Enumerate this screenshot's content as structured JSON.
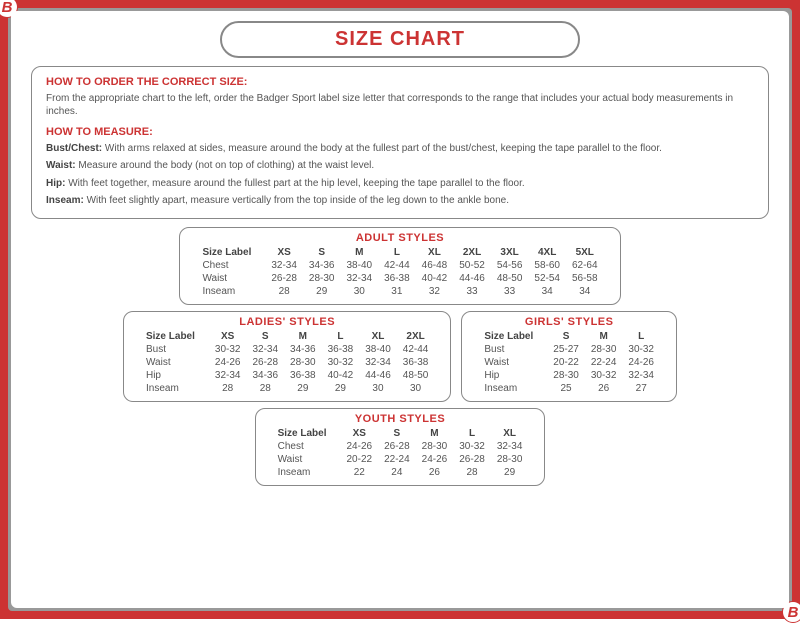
{
  "colors": {
    "accent_red": "#c33",
    "frame_gray": "#999",
    "border_gray": "#888",
    "text_gray": "#555",
    "heading_dark": "#444"
  },
  "page_title": "SIZE CHART",
  "logo_letter": "B",
  "info": {
    "order_heading": "HOW TO ORDER THE CORRECT SIZE:",
    "order_text": "From the appropriate chart to the left, order the Badger Sport label size letter that corresponds to the range that includes your actual body measurements in inches.",
    "measure_heading": "HOW TO MEASURE:",
    "bust_label": "Bust/Chest:",
    "bust_text": " With arms relaxed at sides, measure around the body at the fullest part of the bust/chest, keeping the tape parallel to the floor.",
    "waist_label": "Waist:",
    "waist_text": " Measure around the body (not on top of clothing) at the waist level.",
    "hip_label": "Hip:",
    "hip_text": " With feet together, measure around the fullest part at the hip level, keeping the tape parallel to the floor.",
    "inseam_label": "Inseam:",
    "inseam_text": " With feet slightly apart, measure vertically from the top inside of the leg down to the ankle bone."
  },
  "adult": {
    "title": "ADULT STYLES",
    "size_label": "Size Label",
    "cols": [
      "XS",
      "S",
      "M",
      "L",
      "XL",
      "2XL",
      "3XL",
      "4XL",
      "5XL"
    ],
    "rows": [
      {
        "label": "Chest",
        "vals": [
          "32-34",
          "34-36",
          "38-40",
          "42-44",
          "46-48",
          "50-52",
          "54-56",
          "58-60",
          "62-64"
        ]
      },
      {
        "label": "Waist",
        "vals": [
          "26-28",
          "28-30",
          "32-34",
          "36-38",
          "40-42",
          "44-46",
          "48-50",
          "52-54",
          "56-58"
        ]
      },
      {
        "label": "Inseam",
        "vals": [
          "28",
          "29",
          "30",
          "31",
          "32",
          "33",
          "33",
          "34",
          "34"
        ]
      }
    ]
  },
  "ladies": {
    "title": "LADIES' STYLES",
    "size_label": "Size Label",
    "cols": [
      "XS",
      "S",
      "M",
      "L",
      "XL",
      "2XL"
    ],
    "rows": [
      {
        "label": "Bust",
        "vals": [
          "30-32",
          "32-34",
          "34-36",
          "36-38",
          "38-40",
          "42-44"
        ]
      },
      {
        "label": "Waist",
        "vals": [
          "24-26",
          "26-28",
          "28-30",
          "30-32",
          "32-34",
          "36-38"
        ]
      },
      {
        "label": "Hip",
        "vals": [
          "32-34",
          "34-36",
          "36-38",
          "40-42",
          "44-46",
          "48-50"
        ]
      },
      {
        "label": "Inseam",
        "vals": [
          "28",
          "28",
          "29",
          "29",
          "30",
          "30"
        ]
      }
    ]
  },
  "girls": {
    "title": "GIRLS' STYLES",
    "size_label": "Size Label",
    "cols": [
      "S",
      "M",
      "L"
    ],
    "rows": [
      {
        "label": "Bust",
        "vals": [
          "25-27",
          "28-30",
          "30-32"
        ]
      },
      {
        "label": "Waist",
        "vals": [
          "20-22",
          "22-24",
          "24-26"
        ]
      },
      {
        "label": "Hip",
        "vals": [
          "28-30",
          "30-32",
          "32-34"
        ]
      },
      {
        "label": "Inseam",
        "vals": [
          "25",
          "26",
          "27"
        ]
      }
    ]
  },
  "youth": {
    "title": "YOUTH STYLES",
    "size_label": "Size Label",
    "cols": [
      "XS",
      "S",
      "M",
      "L",
      "XL"
    ],
    "rows": [
      {
        "label": "Chest",
        "vals": [
          "24-26",
          "26-28",
          "28-30",
          "30-32",
          "32-34"
        ]
      },
      {
        "label": "Waist",
        "vals": [
          "20-22",
          "22-24",
          "24-26",
          "26-28",
          "28-30"
        ]
      },
      {
        "label": "Inseam",
        "vals": [
          "22",
          "24",
          "26",
          "28",
          "29"
        ]
      }
    ]
  }
}
